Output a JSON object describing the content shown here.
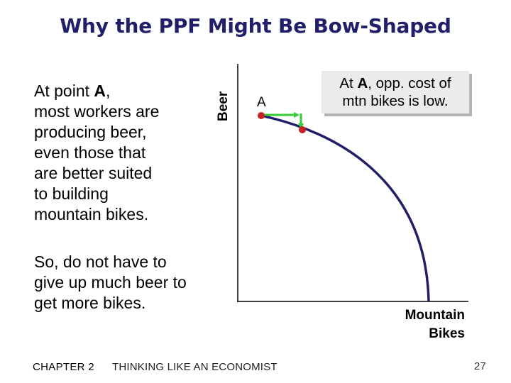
{
  "slide": {
    "title": "Why the PPF Might Be Bow-Shaped",
    "left_text_line1_pre": "At point ",
    "left_text_line1_bold": "A",
    "left_text_line1_post": ",",
    "left_text_rest": [
      "most workers are",
      "producing beer,",
      "even those that",
      "are better suited",
      "to building",
      "mountain bikes."
    ],
    "left_text2": [
      "So, do not have to",
      "give up much beer to",
      "get more bikes."
    ],
    "callout_pre": "At ",
    "callout_bold": "A",
    "callout_post": ", opp. cost of",
    "callout_line2": "mtn bikes is low.",
    "footer_chapter": "CHAPTER 2",
    "footer_title": "THINKING LIKE AN ECONOMIST",
    "page_number": "27"
  },
  "diagram": {
    "y_axis_label": "Beer",
    "x_axis_label_line1": "Mountain",
    "x_axis_label_line2": "Bikes",
    "point_label": "A",
    "colors": {
      "curve": "#1f1f6e",
      "axis": "#000000",
      "point": "#cc1f1f",
      "arrow": "#33cc33"
    }
  }
}
